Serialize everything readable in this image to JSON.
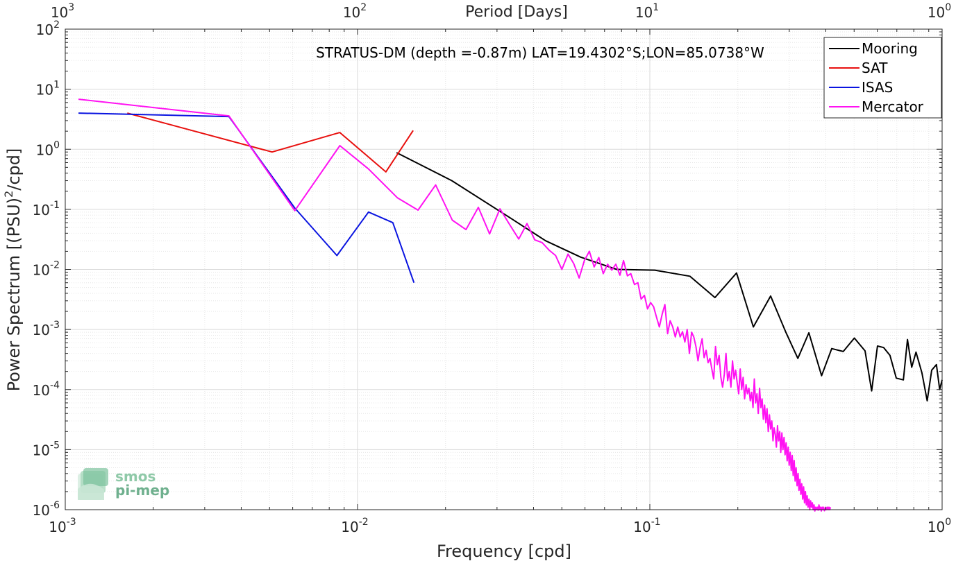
{
  "chart_data": {
    "type": "line",
    "title": "STRATUS-DM (depth =-0.87m) LAT=19.4302°S;LON=85.0738°W",
    "xlabel": "Frequency [cpd]",
    "ylabel": "Power Spectrum [(PSU)2/cpd]",
    "ylabel_parts": {
      "pre": "Power Spectrum [(PSU)",
      "sup": "2",
      "post": "/cpd]"
    },
    "top_xlabel": "Period [Days]",
    "x_scale": "log",
    "y_scale": "log",
    "xlim": [
      0.001,
      1
    ],
    "ylim": [
      1e-06,
      100
    ],
    "grid": true,
    "legend_position": "top-right",
    "x_ticks": [
      {
        "value": 0.001,
        "base": "10",
        "exp": "-3"
      },
      {
        "value": 0.01,
        "base": "10",
        "exp": "-2"
      },
      {
        "value": 0.1,
        "base": "10",
        "exp": "-1"
      },
      {
        "value": 1,
        "base": "10",
        "exp": "0"
      }
    ],
    "y_ticks": [
      {
        "value": 1e-06,
        "base": "10",
        "exp": "-6"
      },
      {
        "value": 1e-05,
        "base": "10",
        "exp": "-5"
      },
      {
        "value": 0.0001,
        "base": "10",
        "exp": "-4"
      },
      {
        "value": 0.001,
        "base": "10",
        "exp": "-3"
      },
      {
        "value": 0.01,
        "base": "10",
        "exp": "-2"
      },
      {
        "value": 0.1,
        "base": "10",
        "exp": "-1"
      },
      {
        "value": 1,
        "base": "10",
        "exp": "0"
      },
      {
        "value": 10,
        "base": "10",
        "exp": "1"
      },
      {
        "value": 100,
        "base": "10",
        "exp": "2"
      }
    ],
    "top_ticks": [
      {
        "value": 0.001,
        "base": "10",
        "exp": "3"
      },
      {
        "value": 0.01,
        "base": "10",
        "exp": "2"
      },
      {
        "value": 0.1,
        "base": "10",
        "exp": "1"
      },
      {
        "value": 1,
        "base": "10",
        "exp": "0"
      }
    ],
    "series": [
      {
        "name": "Mooring",
        "color": "#000000",
        "x": [
          0.0136,
          0.021,
          0.033,
          0.044,
          0.058,
          0.077,
          0.104,
          0.137,
          0.167,
          0.198,
          0.226,
          0.259,
          0.292,
          0.321,
          0.35,
          0.387,
          0.419,
          0.459,
          0.501,
          0.545,
          0.574,
          0.601,
          0.631,
          0.663,
          0.697,
          0.737,
          0.761,
          0.787,
          0.814,
          0.853,
          0.889,
          0.921,
          0.956,
          0.981,
          1.0
        ],
        "y": [
          0.88,
          0.3,
          0.074,
          0.03,
          0.016,
          0.01,
          0.0097,
          0.0077,
          0.0034,
          0.0087,
          0.0011,
          0.0036,
          0.0009,
          0.00033,
          0.00088,
          0.00017,
          0.00048,
          0.00043,
          0.00072,
          0.00044,
          9.5e-05,
          0.00053,
          0.0005,
          0.00037,
          0.000155,
          0.000145,
          0.00068,
          0.000235,
          0.00042,
          0.00019,
          6.5e-05,
          0.00021,
          0.00026,
          0.0001,
          0.000145
        ]
      },
      {
        "name": "SAT",
        "color": "#e8100e",
        "x": [
          0.00163,
          0.0051,
          0.0087,
          0.0125,
          0.0155
        ],
        "y": [
          4.0,
          0.9,
          1.9,
          0.42,
          2.05
        ]
      },
      {
        "name": "ISAS",
        "color": "#0a14e0",
        "x": [
          0.00111,
          0.00363,
          0.0061,
          0.0085,
          0.0109,
          0.0132,
          0.0156
        ],
        "y": [
          4.0,
          3.5,
          0.105,
          0.017,
          0.09,
          0.06,
          0.006
        ]
      },
      {
        "name": "Mercator",
        "color": "#ff12f2",
        "x": [
          0.00111,
          0.00363,
          0.0061,
          0.0087,
          0.0109,
          0.0137,
          0.0161,
          0.0185,
          0.0211,
          0.0235,
          0.0259,
          0.0283,
          0.0307,
          0.0332,
          0.0356,
          0.038,
          0.0404,
          0.0428,
          0.0452,
          0.0476,
          0.05,
          0.0525,
          0.0549,
          0.0573,
          0.0597,
          0.0621,
          0.0645,
          0.0669,
          0.0693,
          0.0717,
          0.0741,
          0.0765,
          0.079,
          0.0813,
          0.0838,
          0.0861,
          0.0886,
          0.091,
          0.0934,
          0.0958,
          0.0982,
          0.1006,
          0.103,
          0.1054,
          0.1078,
          0.1102,
          0.1126,
          0.115,
          0.1174,
          0.1198,
          0.1222,
          0.1246,
          0.127,
          0.1294,
          0.1318,
          0.1342,
          0.1366,
          0.139,
          0.1414,
          0.1438,
          0.1462,
          0.1486,
          0.151,
          0.1534,
          0.1558,
          0.1582,
          0.1606,
          0.163,
          0.1654,
          0.1678,
          0.1702,
          0.1726,
          0.175,
          0.1774,
          0.1798,
          0.1822,
          0.1846,
          0.187,
          0.1894,
          0.1918,
          0.1942,
          0.1966,
          0.199,
          0.2014,
          0.2038,
          0.2062,
          0.2086,
          0.211,
          0.2134,
          0.2158,
          0.2182,
          0.2206,
          0.223,
          0.2254,
          0.2278,
          0.2302,
          0.2326,
          0.235,
          0.2374,
          0.2398,
          0.2422,
          0.2446,
          0.247,
          0.2494,
          0.2518,
          0.2542,
          0.2566,
          0.259,
          0.2614,
          0.2638,
          0.2662,
          0.2686,
          0.271,
          0.2734,
          0.2758,
          0.2782,
          0.2806,
          0.283,
          0.2854,
          0.2878,
          0.2902,
          0.2926,
          0.295,
          0.2974,
          0.2998,
          0.3022,
          0.3046,
          0.307,
          0.3094,
          0.3118,
          0.3142,
          0.3166,
          0.319,
          0.3214,
          0.3238,
          0.3262,
          0.3286,
          0.331,
          0.3334,
          0.3358,
          0.3382,
          0.3406,
          0.343,
          0.3454,
          0.3478,
          0.3502,
          0.3526,
          0.355,
          0.3574,
          0.3598,
          0.3622,
          0.3646,
          0.367,
          0.3694,
          0.3718,
          0.3742,
          0.3766,
          0.379,
          0.3814,
          0.3838,
          0.3862,
          0.3886,
          0.391,
          0.3934,
          0.3958,
          0.3982,
          0.4006,
          0.403,
          0.4054,
          0.4078,
          0.4102,
          0.4126,
          0.415
        ],
        "y": [
          6.8,
          3.6,
          0.095,
          1.15,
          0.47,
          0.155,
          0.097,
          0.255,
          0.066,
          0.046,
          0.108,
          0.039,
          0.102,
          0.055,
          0.032,
          0.058,
          0.031,
          0.028,
          0.021,
          0.017,
          0.01,
          0.018,
          0.0125,
          0.0072,
          0.014,
          0.02,
          0.011,
          0.0158,
          0.0085,
          0.0122,
          0.0097,
          0.0122,
          0.008,
          0.014,
          0.0078,
          0.0085,
          0.0056,
          0.006,
          0.0032,
          0.0037,
          0.0022,
          0.0028,
          0.0024,
          0.0016,
          0.0011,
          0.0018,
          0.0026,
          0.00085,
          0.0014,
          0.0011,
          0.00075,
          0.0011,
          0.00075,
          0.00092,
          0.00062,
          0.001,
          0.0004,
          0.0009,
          0.00075,
          0.00052,
          0.0003,
          0.0005,
          0.0007,
          0.00034,
          0.00045,
          0.00028,
          0.00033,
          0.00022,
          0.00015,
          0.00052,
          0.00026,
          0.00037,
          0.00016,
          0.00011,
          0.00018,
          0.0004,
          0.00014,
          0.0002,
          0.00011,
          0.0003,
          0.00015,
          0.00021,
          0.00013,
          8.5e-05,
          0.00022,
          0.0001,
          0.00016,
          7e-05,
          0.00012,
          8.5e-05,
          0.000105,
          6.5e-05,
          9e-05,
          5e-05,
          0.00015,
          6e-05,
          8.5e-05,
          4e-05,
          0.000105,
          5e-05,
          7e-05,
          3.2e-05,
          5.5e-05,
          2.8e-05,
          4.8e-05,
          2e-05,
          3.8e-05,
          2.2e-05,
          3e-05,
          1.4e-05,
          2.3e-05,
          1.8e-05,
          1.1e-05,
          2.5e-05,
          1.4e-05,
          2e-05,
          9e-06,
          1.9e-05,
          1e-05,
          1.6e-05,
          8.2e-06,
          1.3e-05,
          6.5e-06,
          1.1e-05,
          5.5e-06,
          9e-06,
          4.5e-06,
          8e-06,
          3.7e-06,
          6.6e-06,
          3e-06,
          5e-06,
          2.5e-06,
          4e-06,
          2.1e-06,
          3.2e-06,
          1.8e-06,
          2.7e-06,
          1.5e-06,
          2.4e-06,
          1.3e-06,
          2e-06,
          1.2e-06,
          1.7e-06,
          1.1e-06,
          1.5e-06,
          1e-06,
          1.4e-06,
          1.1e-06,
          1.3e-06,
          1e-06,
          1.2e-06,
          9.5e-07,
          1.1e-06,
          1e-06,
          1.1e-06,
          9.8e-07,
          1.2e-06,
          1e-06,
          1.1e-06,
          9.5e-07,
          1.1e-06,
          1e-06,
          1.1e-06,
          9.6e-07,
          1e-06,
          1.1e-06,
          1e-06,
          1.1e-06,
          1e-06,
          1.1e-06,
          1e-06,
          1.1e-06
        ]
      }
    ]
  },
  "watermark": {
    "line1": "smos",
    "line2": "pi-mep"
  }
}
